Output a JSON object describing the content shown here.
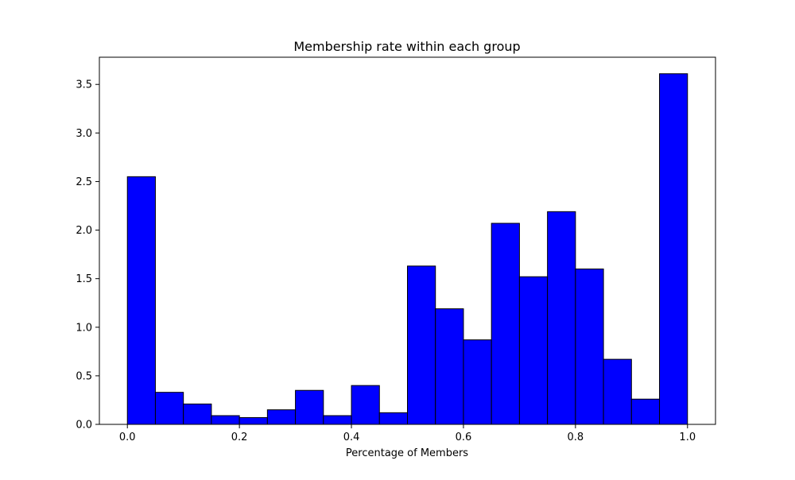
{
  "chart_data": {
    "type": "bar",
    "title": "Membership rate within each group",
    "xlabel": "Percentage of Members",
    "ylabel": "",
    "bins": [
      {
        "x0": 0.0,
        "x1": 0.05,
        "value": 2.55
      },
      {
        "x0": 0.05,
        "x1": 0.1,
        "value": 0.33
      },
      {
        "x0": 0.1,
        "x1": 0.15,
        "value": 0.21
      },
      {
        "x0": 0.15,
        "x1": 0.2,
        "value": 0.09
      },
      {
        "x0": 0.2,
        "x1": 0.25,
        "value": 0.07
      },
      {
        "x0": 0.25,
        "x1": 0.3,
        "value": 0.15
      },
      {
        "x0": 0.3,
        "x1": 0.35,
        "value": 0.35
      },
      {
        "x0": 0.35,
        "x1": 0.4,
        "value": 0.09
      },
      {
        "x0": 0.4,
        "x1": 0.45,
        "value": 0.4
      },
      {
        "x0": 0.45,
        "x1": 0.5,
        "value": 0.12
      },
      {
        "x0": 0.5,
        "x1": 0.55,
        "value": 1.63
      },
      {
        "x0": 0.55,
        "x1": 0.6,
        "value": 1.19
      },
      {
        "x0": 0.6,
        "x1": 0.65,
        "value": 0.87
      },
      {
        "x0": 0.65,
        "x1": 0.7,
        "value": 2.07
      },
      {
        "x0": 0.7,
        "x1": 0.75,
        "value": 1.52
      },
      {
        "x0": 0.75,
        "x1": 0.8,
        "value": 2.19
      },
      {
        "x0": 0.8,
        "x1": 0.85,
        "value": 1.6
      },
      {
        "x0": 0.85,
        "x1": 0.9,
        "value": 0.67
      },
      {
        "x0": 0.9,
        "x1": 0.95,
        "value": 0.26
      },
      {
        "x0": 0.95,
        "x1": 1.0,
        "value": 3.61
      }
    ],
    "xlim": [
      -0.05,
      1.05
    ],
    "ylim": [
      0,
      3.78
    ],
    "xticks": [
      0.0,
      0.2,
      0.4,
      0.6,
      0.8,
      1.0
    ],
    "xtick_labels": [
      "0.0",
      "0.2",
      "0.4",
      "0.6",
      "0.8",
      "1.0"
    ],
    "yticks": [
      0.0,
      0.5,
      1.0,
      1.5,
      2.0,
      2.5,
      3.0,
      3.5
    ],
    "ytick_labels": [
      "0.0",
      "0.5",
      "1.0",
      "1.5",
      "2.0",
      "2.5",
      "3.0",
      "3.5"
    ],
    "grid": false,
    "bar_color": "#0000ff",
    "edge_color": "#000000"
  }
}
